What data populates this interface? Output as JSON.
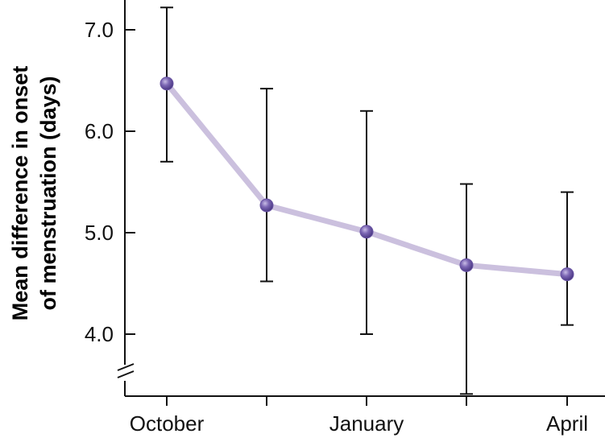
{
  "chart_data": {
    "type": "line",
    "title": "",
    "xlabel": "",
    "ylabel_lines": [
      "Mean difference in onset",
      "of menstruation (days)"
    ],
    "categories": [
      "October",
      "",
      "January",
      "",
      "April"
    ],
    "x_tick_labels": [
      "October",
      "January",
      "April"
    ],
    "y_tick_labels": [
      "7.0",
      "6.0",
      "5.0",
      "4.0"
    ],
    "y_ticks": [
      7.0,
      6.0,
      5.0,
      4.0
    ],
    "ylim": [
      3.4,
      7.3
    ],
    "axis_break": true,
    "grid": false,
    "legend": "none",
    "series": [
      {
        "values": [
          6.47,
          5.27,
          5.01,
          4.68,
          4.59
        ],
        "error_low": [
          5.7,
          4.52,
          4.0,
          3.41,
          4.09
        ],
        "error_high": [
          7.22,
          6.42,
          6.2,
          5.48,
          5.4
        ]
      }
    ],
    "colors": {
      "line": "#cbc0de",
      "marker": "#6a55a3",
      "marker_highlight": "#b7a8da",
      "error_bar": "#111111",
      "axis": "#111111"
    }
  }
}
